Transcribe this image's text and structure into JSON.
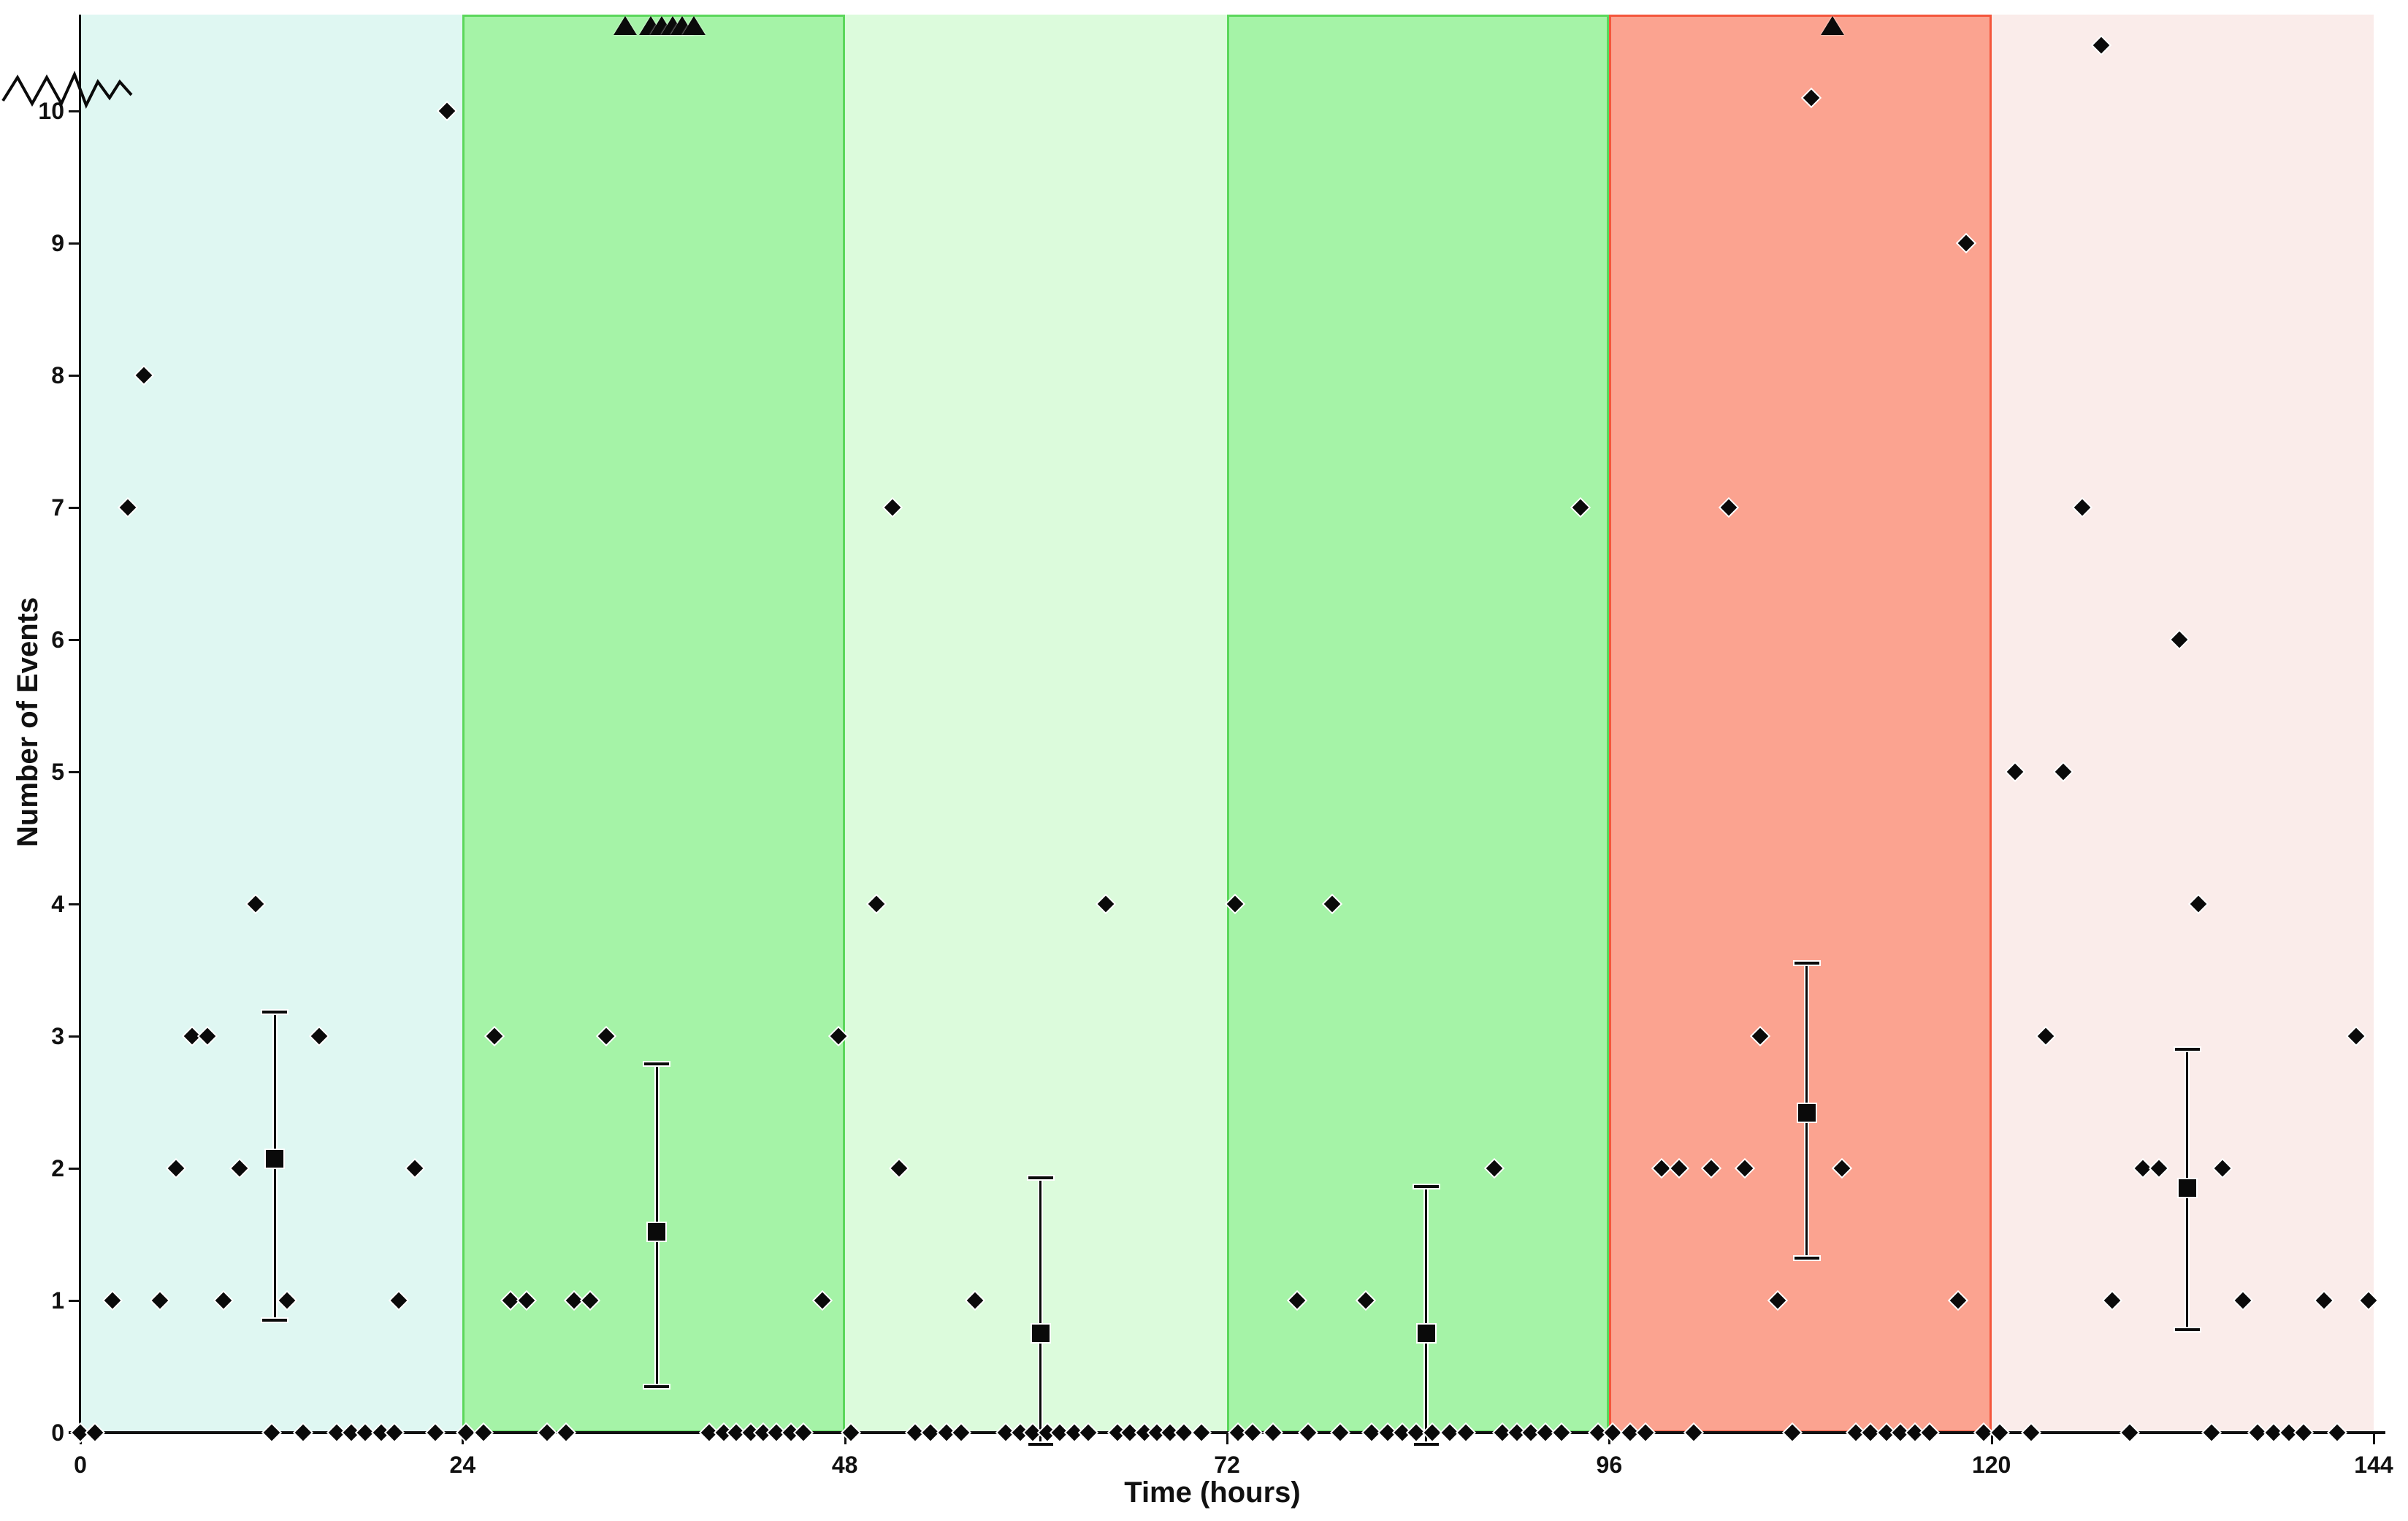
{
  "figure": {
    "xlabel": "Time (hours)",
    "ylabel": "Number of Events"
  },
  "chart_data": {
    "type": "scatter",
    "title": "",
    "xlabel": "Time (hours)",
    "ylabel": "Number of Events",
    "xlim": [
      0,
      144
    ],
    "ylim": [
      0,
      10.7
    ],
    "xticks": [
      0,
      24,
      48,
      72,
      96,
      120,
      144
    ],
    "yticks": [
      0,
      1,
      2,
      3,
      4,
      5,
      6,
      7,
      8,
      9,
      10
    ],
    "y_axis_break_above": 10,
    "grid": false,
    "legend": "none",
    "marker_color": "#0a0a0a",
    "bands": [
      {
        "from": 0,
        "to": 24,
        "color": "#dff7f2",
        "border": ""
      },
      {
        "from": 24,
        "to": 48,
        "color": "#a5f3a7",
        "border": "#5bd75b"
      },
      {
        "from": 48,
        "to": 72,
        "color": "#dcfbdc",
        "border": ""
      },
      {
        "from": 72,
        "to": 96,
        "color": "#a5f3a7",
        "border": "#5bd75b"
      },
      {
        "from": 96,
        "to": 120,
        "color": "#fba390",
        "border": "#f4563c"
      },
      {
        "from": 120,
        "to": 144,
        "color": "#faecea",
        "border": ""
      }
    ],
    "points": [
      [
        2,
        1
      ],
      [
        5,
        1
      ],
      [
        9,
        1
      ],
      [
        13,
        1
      ],
      [
        20,
        1
      ],
      [
        6,
        2
      ],
      [
        10,
        2
      ],
      [
        21,
        2
      ],
      [
        7,
        3
      ],
      [
        8,
        3
      ],
      [
        15,
        3
      ],
      [
        11,
        4
      ],
      [
        3,
        7
      ],
      [
        4,
        8
      ],
      [
        23,
        10
      ],
      [
        26,
        3
      ],
      [
        33,
        3
      ],
      [
        47.6,
        3
      ],
      [
        27,
        1
      ],
      [
        28,
        1
      ],
      [
        31,
        1
      ],
      [
        32,
        1
      ],
      [
        46.6,
        1
      ],
      [
        50,
        4
      ],
      [
        64.4,
        4
      ],
      [
        51,
        7
      ],
      [
        51.4,
        2
      ],
      [
        56.2,
        1
      ],
      [
        72.5,
        4
      ],
      [
        78.6,
        4
      ],
      [
        94.2,
        7
      ],
      [
        88.8,
        2
      ],
      [
        76.4,
        1
      ],
      [
        80.7,
        1
      ],
      [
        103.5,
        7
      ],
      [
        105.5,
        3
      ],
      [
        99.3,
        2
      ],
      [
        100.4,
        2
      ],
      [
        102.4,
        2
      ],
      [
        104.5,
        2
      ],
      [
        110.6,
        2
      ],
      [
        106.6,
        1
      ],
      [
        117.9,
        1
      ],
      [
        118.4,
        9
      ],
      [
        108.7,
        10.1
      ],
      [
        121.5,
        5
      ],
      [
        124.5,
        5
      ],
      [
        125.7,
        7
      ],
      [
        131.8,
        6
      ],
      [
        133,
        4
      ],
      [
        123.4,
        3
      ],
      [
        142.9,
        3
      ],
      [
        129.5,
        2
      ],
      [
        130.5,
        2
      ],
      [
        134.5,
        2
      ],
      [
        127.6,
        1
      ],
      [
        135.8,
        1
      ],
      [
        140.9,
        1
      ],
      [
        143.7,
        1
      ],
      [
        126.9,
        10.5
      ],
      [
        0,
        0
      ],
      [
        0.9,
        0
      ],
      [
        12,
        0
      ],
      [
        14,
        0
      ],
      [
        16.1,
        0
      ],
      [
        17,
        0
      ],
      [
        17.9,
        0
      ],
      [
        18.9,
        0
      ],
      [
        19.7,
        0
      ],
      [
        22.3,
        0
      ],
      [
        24.2,
        0
      ],
      [
        25.3,
        0
      ],
      [
        29.3,
        0
      ],
      [
        30.5,
        0
      ],
      [
        39.5,
        0
      ],
      [
        40.4,
        0
      ],
      [
        41.2,
        0
      ],
      [
        42.1,
        0
      ],
      [
        42.9,
        0
      ],
      [
        43.7,
        0
      ],
      [
        44.6,
        0
      ],
      [
        45.4,
        0
      ],
      [
        48.4,
        0
      ],
      [
        52.4,
        0
      ],
      [
        53.4,
        0
      ],
      [
        54.4,
        0
      ],
      [
        55.3,
        0
      ],
      [
        58.1,
        0
      ],
      [
        59,
        0
      ],
      [
        59.8,
        0
      ],
      [
        60.7,
        0
      ],
      [
        61.5,
        0
      ],
      [
        62.4,
        0
      ],
      [
        63.3,
        0
      ],
      [
        65.1,
        0
      ],
      [
        65.9,
        0
      ],
      [
        66.8,
        0
      ],
      [
        67.6,
        0
      ],
      [
        68.4,
        0
      ],
      [
        69.3,
        0
      ],
      [
        70.4,
        0
      ],
      [
        72.7,
        0
      ],
      [
        73.6,
        0
      ],
      [
        74.9,
        0
      ],
      [
        77.1,
        0
      ],
      [
        79.1,
        0
      ],
      [
        81.1,
        0
      ],
      [
        82.1,
        0
      ],
      [
        83,
        0
      ],
      [
        83.9,
        0
      ],
      [
        84.9,
        0
      ],
      [
        86,
        0
      ],
      [
        87,
        0
      ],
      [
        89.3,
        0
      ],
      [
        90.2,
        0
      ],
      [
        91.1,
        0
      ],
      [
        92,
        0
      ],
      [
        93,
        0
      ],
      [
        95.3,
        0
      ],
      [
        96.2,
        0
      ],
      [
        97.3,
        0
      ],
      [
        98.3,
        0
      ],
      [
        101.3,
        0
      ],
      [
        107.5,
        0
      ],
      [
        111.5,
        0
      ],
      [
        112.4,
        0
      ],
      [
        113.4,
        0
      ],
      [
        114.3,
        0
      ],
      [
        115.2,
        0
      ],
      [
        116.1,
        0
      ],
      [
        119.5,
        0
      ],
      [
        120.5,
        0
      ],
      [
        122.5,
        0
      ],
      [
        128.7,
        0
      ],
      [
        133.8,
        0
      ],
      [
        136.7,
        0
      ],
      [
        137.7,
        0
      ],
      [
        138.7,
        0
      ],
      [
        139.6,
        0
      ],
      [
        141.7,
        0
      ]
    ],
    "offscale_triangles_x": [
      34.2,
      35.8,
      36.5,
      37.2,
      37.8,
      38.5,
      110
    ],
    "error_bars": [
      {
        "x": 12.2,
        "mean": 2.07,
        "low": 0.85,
        "high": 3.18
      },
      {
        "x": 36.2,
        "mean": 1.52,
        "low": 0.35,
        "high": 2.79
      },
      {
        "x": 60.3,
        "mean": 0.75,
        "low": -0.09,
        "high": 1.93
      },
      {
        "x": 84.5,
        "mean": 0.75,
        "low": -0.09,
        "high": 1.86
      },
      {
        "x": 108.4,
        "mean": 2.42,
        "low": 1.32,
        "high": 3.55
      },
      {
        "x": 132.3,
        "mean": 1.85,
        "low": 0.78,
        "high": 2.9
      }
    ]
  }
}
